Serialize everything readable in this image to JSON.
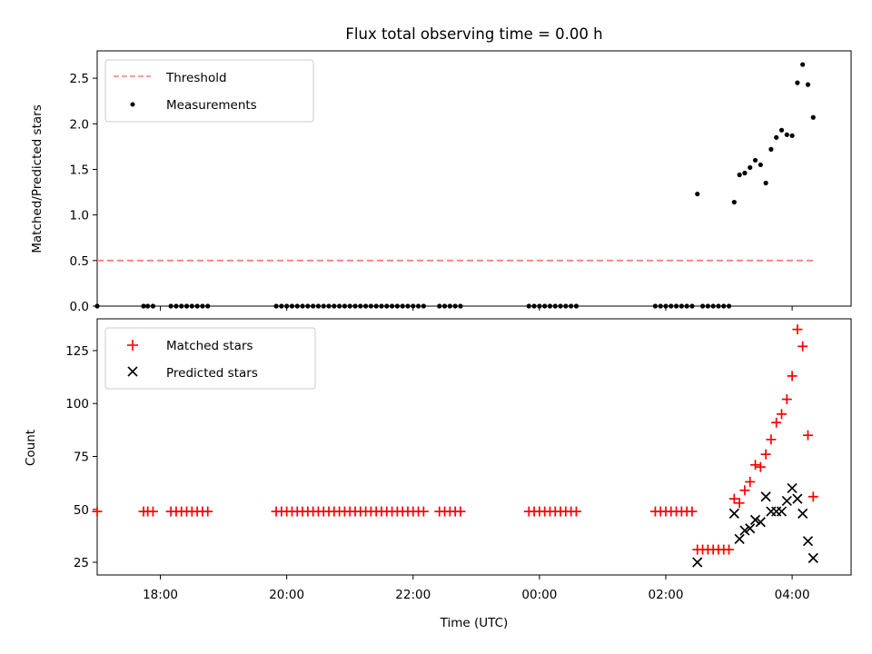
{
  "figure_title": "Flux total observing time = 0.00 h",
  "colors": {
    "threshold": "#ff7f7f",
    "measurement": "#000000",
    "matched": "#ff0000",
    "predicted": "#000000"
  },
  "chart_data": [
    {
      "type": "scatter",
      "panel": "top",
      "ylabel": "Matched/Predicted stars",
      "xlim": [
        "17:00",
        "04:56"
      ],
      "ylim": [
        0,
        2.8
      ],
      "yticks": [
        0.0,
        0.5,
        1.0,
        1.5,
        2.0,
        2.5
      ],
      "ytick_labels": [
        "0.0",
        "0.5",
        "1.0",
        "1.5",
        "2.0",
        "2.5"
      ],
      "grid": false,
      "legend_position": "top-left",
      "series": [
        {
          "name": "Threshold",
          "style": "dashed-line",
          "x": [
            "17:00",
            "04:22"
          ],
          "y": [
            0.5,
            0.5
          ]
        },
        {
          "name": "Measurements",
          "style": "dot",
          "x": [
            "17:00",
            "17:44",
            "17:48",
            "17:53",
            "18:10",
            "18:15",
            "18:20",
            "18:25",
            "18:30",
            "18:35",
            "18:40",
            "18:45",
            "19:50",
            "19:55",
            "20:00",
            "20:05",
            "20:10",
            "20:15",
            "20:20",
            "20:25",
            "20:30",
            "20:35",
            "20:40",
            "20:45",
            "20:50",
            "20:55",
            "21:00",
            "21:05",
            "21:10",
            "21:15",
            "21:20",
            "21:25",
            "21:30",
            "21:35",
            "21:40",
            "21:45",
            "21:50",
            "21:55",
            "22:00",
            "22:05",
            "22:10",
            "22:25",
            "22:30",
            "22:35",
            "22:40",
            "22:45",
            "23:50",
            "23:55",
            "00:00",
            "00:05",
            "00:10",
            "00:15",
            "00:20",
            "00:25",
            "00:30",
            "00:35",
            "01:50",
            "01:55",
            "02:00",
            "02:05",
            "02:10",
            "02:15",
            "02:20",
            "02:25",
            "02:30",
            "02:35",
            "02:40",
            "02:45",
            "02:50",
            "02:55",
            "03:00",
            "03:05",
            "03:10",
            "03:15",
            "03:20",
            "03:25",
            "03:30",
            "03:35",
            "03:40",
            "03:45",
            "03:50",
            "03:55",
            "04:00",
            "04:05",
            "04:10",
            "04:15",
            "04:20"
          ],
          "y": [
            0,
            0,
            0,
            0,
            0,
            0,
            0,
            0,
            0,
            0,
            0,
            0,
            0,
            0,
            0,
            0,
            0,
            0,
            0,
            0,
            0,
            0,
            0,
            0,
            0,
            0,
            0,
            0,
            0,
            0,
            0,
            0,
            0,
            0,
            0,
            0,
            0,
            0,
            0,
            0,
            0,
            0,
            0,
            0,
            0,
            0,
            0,
            0,
            0,
            0,
            0,
            0,
            0,
            0,
            0,
            0,
            0,
            0,
            0,
            0,
            0,
            0,
            0,
            0,
            1.23,
            0,
            0,
            0,
            0,
            0,
            0,
            1.14,
            1.44,
            1.46,
            1.52,
            1.6,
            1.55,
            1.35,
            1.72,
            1.85,
            1.93,
            1.88,
            1.87,
            2.45,
            2.65,
            2.43,
            2.07
          ]
        }
      ]
    },
    {
      "type": "scatter",
      "panel": "bottom",
      "xlabel": "Time (UTC)",
      "ylabel": "Count",
      "xlim": [
        "17:00",
        "04:56"
      ],
      "ylim": [
        19,
        140
      ],
      "xticks": [
        "18:00",
        "20:00",
        "22:00",
        "00:00",
        "02:00",
        "04:00"
      ],
      "yticks": [
        25,
        50,
        75,
        100,
        125
      ],
      "ytick_labels": [
        "25",
        "50",
        "75",
        "100",
        "125"
      ],
      "grid": false,
      "legend_position": "top-left",
      "series": [
        {
          "name": "Matched stars",
          "marker": "plus",
          "x": [
            "17:00",
            "17:44",
            "17:48",
            "17:53",
            "18:10",
            "18:15",
            "18:20",
            "18:25",
            "18:30",
            "18:35",
            "18:40",
            "18:45",
            "19:50",
            "19:55",
            "20:00",
            "20:05",
            "20:10",
            "20:15",
            "20:20",
            "20:25",
            "20:30",
            "20:35",
            "20:40",
            "20:45",
            "20:50",
            "20:55",
            "21:00",
            "21:05",
            "21:10",
            "21:15",
            "21:20",
            "21:25",
            "21:30",
            "21:35",
            "21:40",
            "21:45",
            "21:50",
            "21:55",
            "22:00",
            "22:05",
            "22:10",
            "22:25",
            "22:30",
            "22:35",
            "22:40",
            "22:45",
            "23:50",
            "23:55",
            "00:00",
            "00:05",
            "00:10",
            "00:15",
            "00:20",
            "00:25",
            "00:30",
            "00:35",
            "01:50",
            "01:55",
            "02:00",
            "02:05",
            "02:10",
            "02:15",
            "02:20",
            "02:25",
            "02:30",
            "02:35",
            "02:40",
            "02:45",
            "02:50",
            "02:55",
            "03:00",
            "03:05",
            "03:10",
            "03:15",
            "03:20",
            "03:25",
            "03:30",
            "03:35",
            "03:40",
            "03:45",
            "03:50",
            "03:55",
            "04:00",
            "04:05",
            "04:10",
            "04:15",
            "04:20"
          ],
          "y": [
            49,
            49,
            49,
            49,
            49,
            49,
            49,
            49,
            49,
            49,
            49,
            49,
            49,
            49,
            49,
            49,
            49,
            49,
            49,
            49,
            49,
            49,
            49,
            49,
            49,
            49,
            49,
            49,
            49,
            49,
            49,
            49,
            49,
            49,
            49,
            49,
            49,
            49,
            49,
            49,
            49,
            49,
            49,
            49,
            49,
            49,
            49,
            49,
            49,
            49,
            49,
            49,
            49,
            49,
            49,
            49,
            49,
            49,
            49,
            49,
            49,
            49,
            49,
            49,
            31,
            31,
            31,
            31,
            31,
            31,
            31,
            55,
            53,
            59,
            63,
            71,
            70,
            76,
            83,
            91,
            95,
            102,
            113,
            135,
            127,
            85,
            56
          ]
        },
        {
          "name": "Predicted stars",
          "marker": "x",
          "x": [
            "02:30",
            "03:05",
            "03:10",
            "03:15",
            "03:20",
            "03:25",
            "03:30",
            "03:35",
            "03:40",
            "03:45",
            "03:50",
            "03:55",
            "04:00",
            "04:05",
            "04:10",
            "04:15",
            "04:20"
          ],
          "y": [
            25,
            48,
            36,
            40,
            41,
            45,
            44,
            56,
            49,
            49,
            49,
            54,
            60,
            55,
            48,
            35,
            27
          ]
        }
      ]
    }
  ]
}
